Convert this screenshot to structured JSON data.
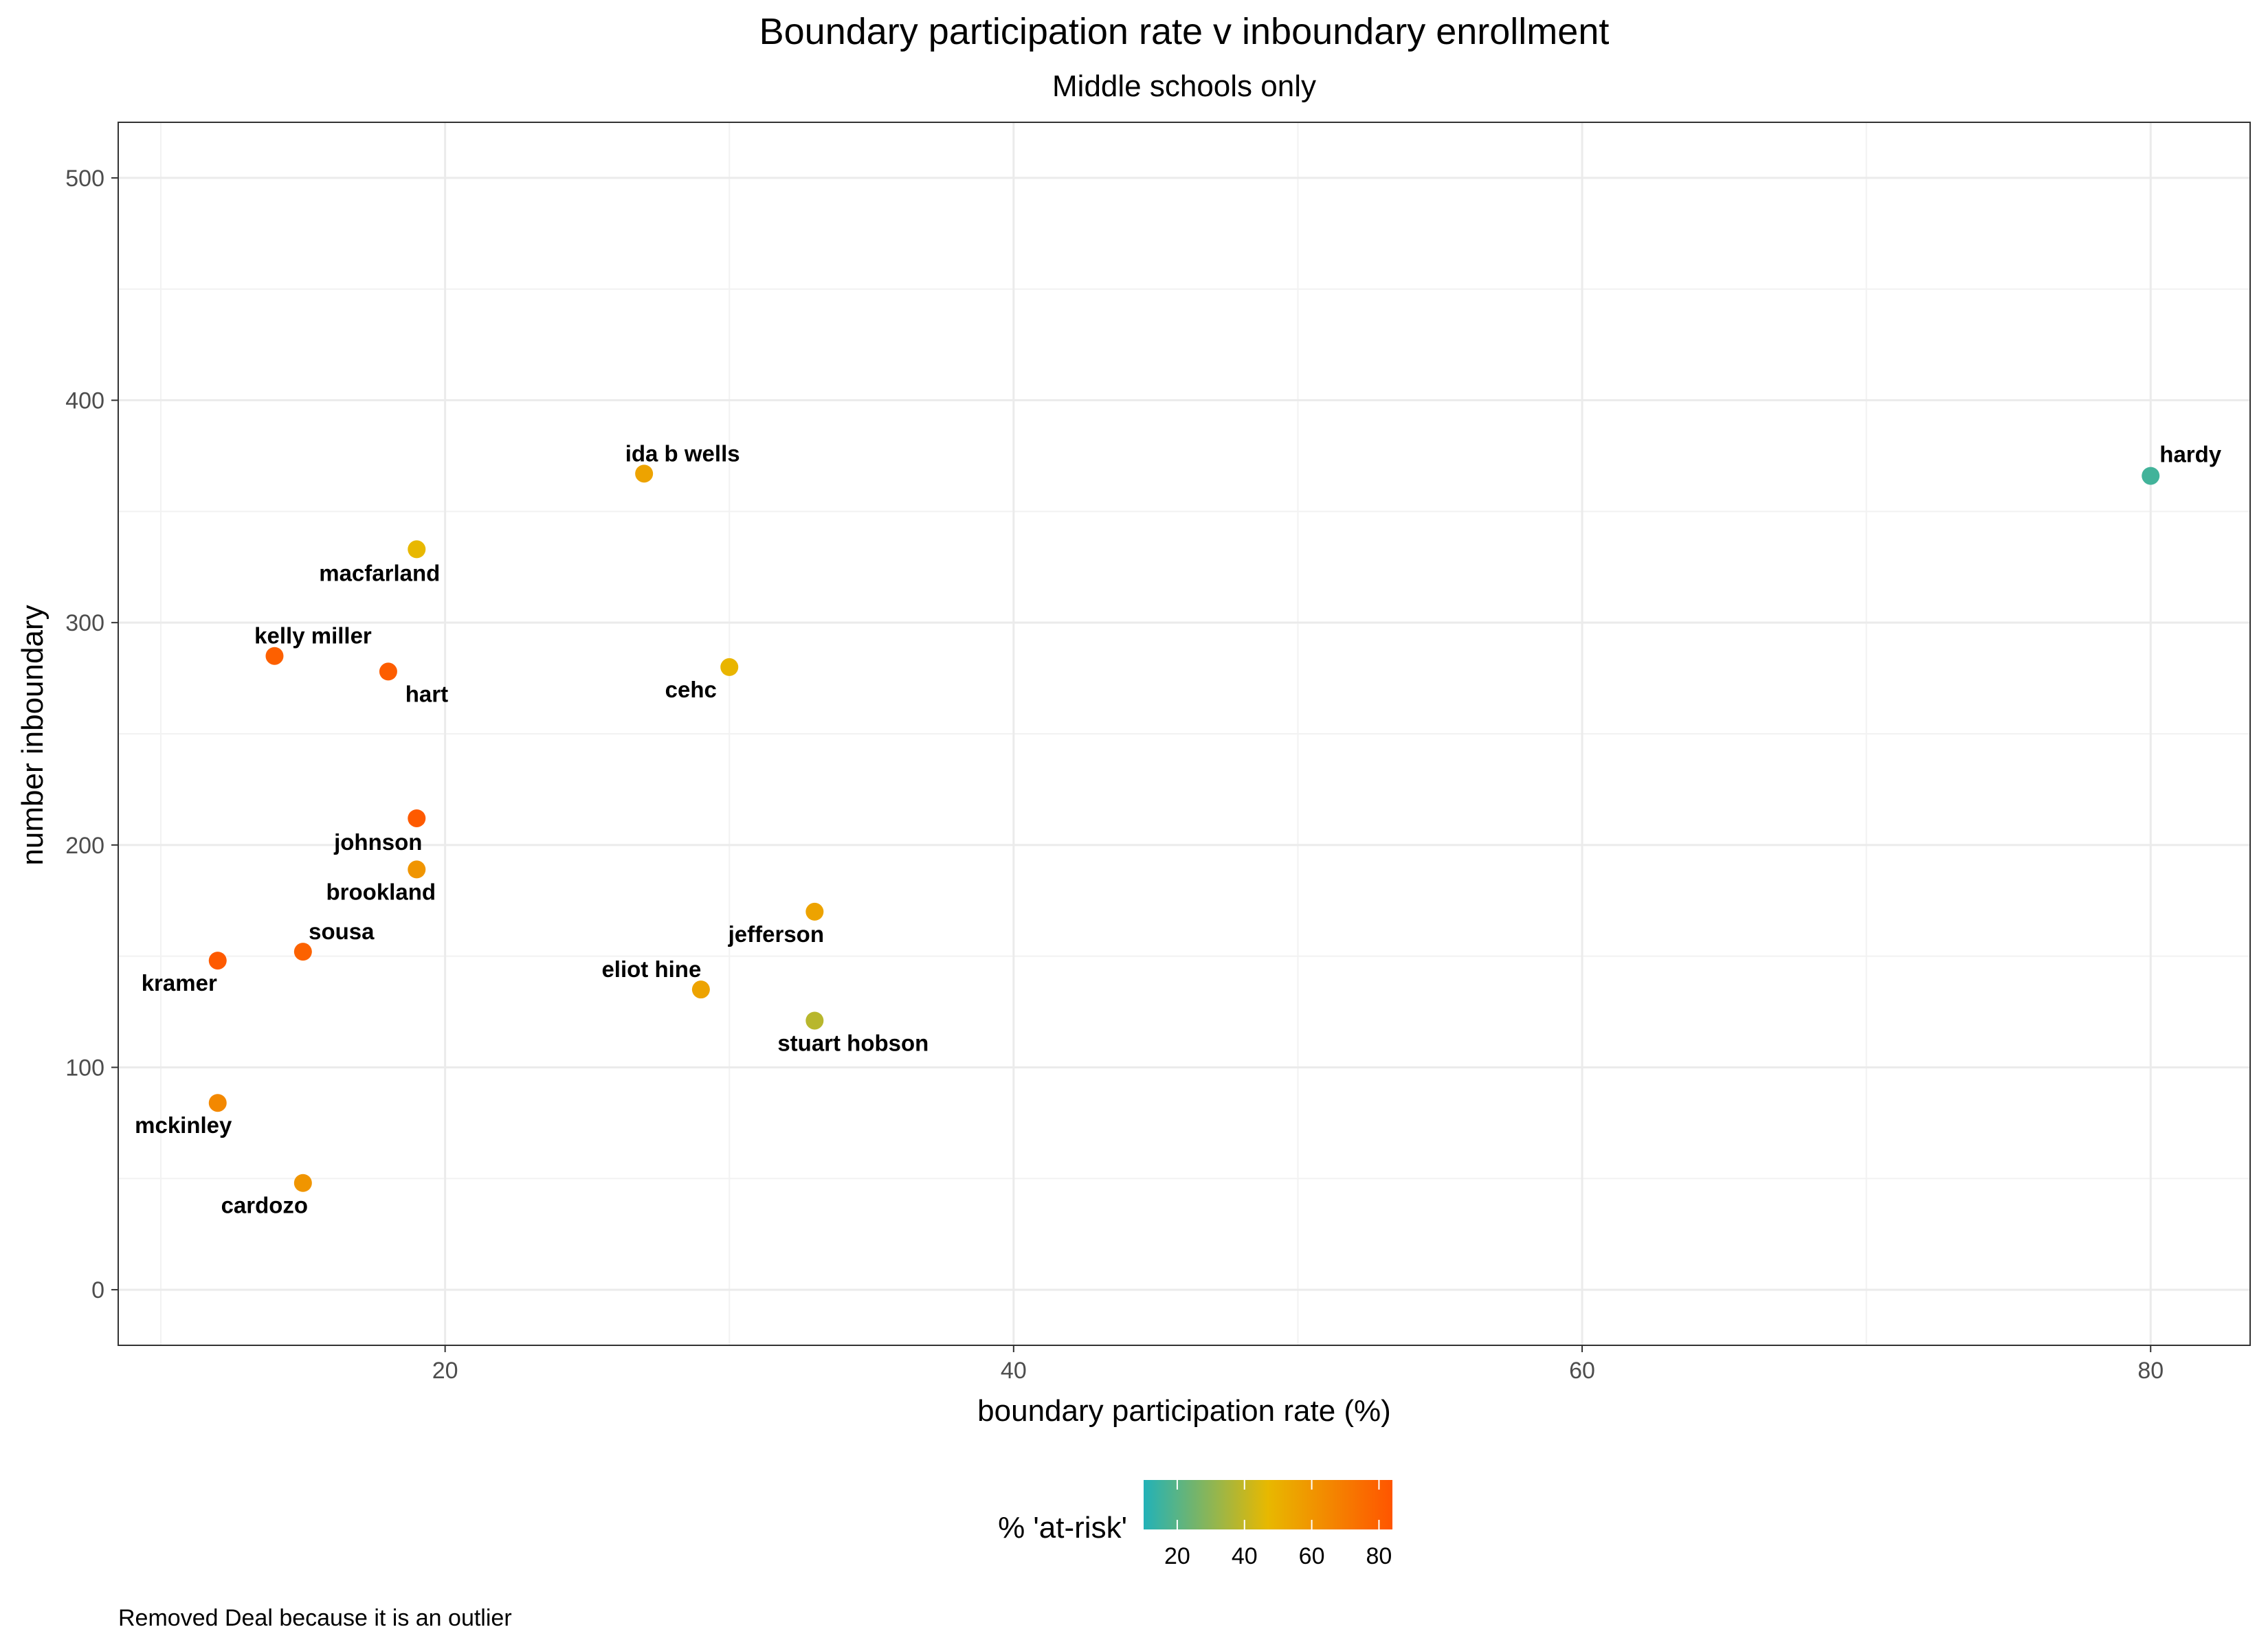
{
  "chart_data": {
    "type": "scatter",
    "title": "Boundary participation rate v inboundary enrollment",
    "subtitle": "Middle schools only",
    "xlabel": "boundary participation rate (%)",
    "ylabel": "number inboundary",
    "xlim": [
      8.5,
      83.5
    ],
    "ylim": [
      -25,
      525
    ],
    "x_ticks": [
      20,
      40,
      60,
      80
    ],
    "y_ticks": [
      0,
      100,
      200,
      300,
      400,
      500
    ],
    "grid": true,
    "points": [
      {
        "name": "hardy",
        "x": 80,
        "y": 366,
        "at_risk": 16
      },
      {
        "name": "ida b wells",
        "x": 27,
        "y": 367,
        "at_risk": 55
      },
      {
        "name": "macfarland",
        "x": 19,
        "y": 333,
        "at_risk": 47
      },
      {
        "name": "kelly miller",
        "x": 14,
        "y": 285,
        "at_risk": 80
      },
      {
        "name": "hart",
        "x": 18,
        "y": 278,
        "at_risk": 81
      },
      {
        "name": "cehc",
        "x": 30,
        "y": 280,
        "at_risk": 48
      },
      {
        "name": "johnson",
        "x": 19,
        "y": 212,
        "at_risk": 82
      },
      {
        "name": "brookland",
        "x": 19,
        "y": 189,
        "at_risk": 60
      },
      {
        "name": "jefferson",
        "x": 33,
        "y": 170,
        "at_risk": 55
      },
      {
        "name": "sousa",
        "x": 15,
        "y": 152,
        "at_risk": 79
      },
      {
        "name": "kramer",
        "x": 12,
        "y": 148,
        "at_risk": 82
      },
      {
        "name": "eliot hine",
        "x": 29,
        "y": 135,
        "at_risk": 55
      },
      {
        "name": "stuart hobson",
        "x": 33,
        "y": 121,
        "at_risk": 38
      },
      {
        "name": "mckinley",
        "x": 12,
        "y": 84,
        "at_risk": 65
      },
      {
        "name": "cardozo",
        "x": 15,
        "y": 48,
        "at_risk": 60
      }
    ],
    "legend": {
      "title": "% 'at-risk'",
      "range": [
        10,
        84
      ],
      "ticks": [
        20,
        40,
        60,
        80
      ],
      "colors": [
        "#22b2b8",
        "#e8b800",
        "#ff5500"
      ],
      "placement": "bottom"
    },
    "caption": "Removed Deal because it is an outlier"
  }
}
